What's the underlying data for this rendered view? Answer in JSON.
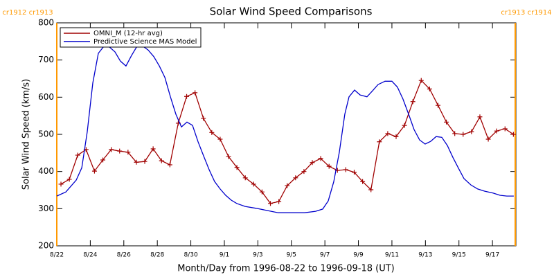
{
  "chart_data": {
    "type": "line",
    "title": "Solar Wind Speed Comparisons",
    "xlabel": "Month/Day from 1996-08-22 to 1996-09-18 (UT)",
    "ylabel": "Solar Wind Speed (km/s)",
    "xlim": [
      0,
      27.4
    ],
    "xticks": [
      {
        "value": 0,
        "label": "8/22"
      },
      {
        "value": 2,
        "label": "8/24"
      },
      {
        "value": 4,
        "label": "8/26"
      },
      {
        "value": 6,
        "label": "8/28"
      },
      {
        "value": 8,
        "label": "8/30"
      },
      {
        "value": 10,
        "label": "9/1"
      },
      {
        "value": 12,
        "label": "9/3"
      },
      {
        "value": 14,
        "label": "9/5"
      },
      {
        "value": 16,
        "label": "9/7"
      },
      {
        "value": 18,
        "label": "9/9"
      },
      {
        "value": 20,
        "label": "9/11"
      },
      {
        "value": 22,
        "label": "9/13"
      },
      {
        "value": 24,
        "label": "9/15"
      },
      {
        "value": 26,
        "label": "9/17"
      }
    ],
    "ylim": [
      200,
      800
    ],
    "yticks": [
      200,
      300,
      400,
      500,
      600,
      700,
      800
    ],
    "legend": "upper left",
    "boundaries": {
      "color": "#ff9900",
      "items": [
        {
          "x": 0,
          "label": "cr1912 cr1913"
        },
        {
          "x": 27.36,
          "label": "cr1913 cr1914"
        }
      ]
    },
    "series": [
      {
        "name": "OMNI_M (12-hr avg)",
        "color": "#a00000",
        "marker": "+",
        "x": [
          0.25,
          0.75,
          1.25,
          1.75,
          2.25,
          2.75,
          3.25,
          3.75,
          4.25,
          4.75,
          5.25,
          5.75,
          6.25,
          6.75,
          7.25,
          7.75,
          8.25,
          8.75,
          9.25,
          9.75,
          10.25,
          10.75,
          11.25,
          11.75,
          12.25,
          12.75,
          13.25,
          13.75,
          14.25,
          14.75,
          15.25,
          15.75,
          16.25,
          16.75,
          17.25,
          17.75,
          18.25,
          18.75,
          19.25,
          19.75,
          20.25,
          20.75,
          21.25,
          21.75,
          22.25,
          22.75,
          23.25,
          23.75,
          24.25,
          24.75,
          25.25,
          25.75,
          26.25,
          26.75,
          27.25
        ],
        "values": [
          366,
          379,
          444,
          459,
          401,
          431,
          459,
          455,
          452,
          425,
          427,
          461,
          429,
          418,
          530,
          602,
          612,
          543,
          505,
          487,
          440,
          411,
          383,
          366,
          345,
          314,
          319,
          362,
          383,
          400,
          424,
          435,
          414,
          403,
          405,
          398,
          373,
          351,
          480,
          502,
          494,
          524,
          588,
          645,
          622,
          578,
          533,
          502,
          500,
          507,
          547,
          487,
          509,
          515,
          500
        ]
      },
      {
        "name": "Predictive Science MAS Model",
        "color": "#0000cc",
        "x": [
          0,
          0.54,
          1.16,
          1.49,
          1.82,
          2.15,
          2.48,
          2.81,
          3.14,
          3.47,
          3.8,
          4.13,
          4.46,
          4.79,
          5.12,
          5.45,
          5.79,
          6.12,
          6.45,
          6.78,
          7.11,
          7.44,
          7.77,
          8.1,
          8.43,
          8.76,
          9.09,
          9.42,
          9.75,
          10.08,
          10.41,
          10.74,
          11.24,
          11.9,
          12.56,
          13.22,
          13.97,
          14.79,
          15.45,
          15.87,
          16.2,
          16.53,
          16.86,
          17.19,
          17.44,
          17.77,
          18.1,
          18.51,
          18.84,
          19.17,
          19.59,
          20,
          20.33,
          20.66,
          21,
          21.32,
          21.65,
          21.98,
          22.31,
          22.64,
          22.98,
          23.31,
          23.64,
          23.97,
          24.3,
          24.71,
          25.12,
          25.54,
          26.03,
          26.45,
          26.86,
          27.27
        ],
        "values": [
          334,
          345,
          377,
          410,
          507,
          638,
          718,
          737,
          735,
          722,
          697,
          684,
          712,
          737,
          738,
          727,
          709,
          684,
          653,
          601,
          554,
          520,
          533,
          524,
          480,
          442,
          405,
          373,
          353,
          336,
          323,
          314,
          306,
          301,
          295,
          289,
          289,
          289,
          293,
          299,
          321,
          373,
          452,
          554,
          601,
          619,
          606,
          601,
          617,
          634,
          643,
          643,
          627,
          595,
          554,
          513,
          485,
          474,
          481,
          494,
          492,
          470,
          438,
          409,
          381,
          364,
          353,
          347,
          342,
          336,
          334,
          334
        ]
      }
    ]
  }
}
